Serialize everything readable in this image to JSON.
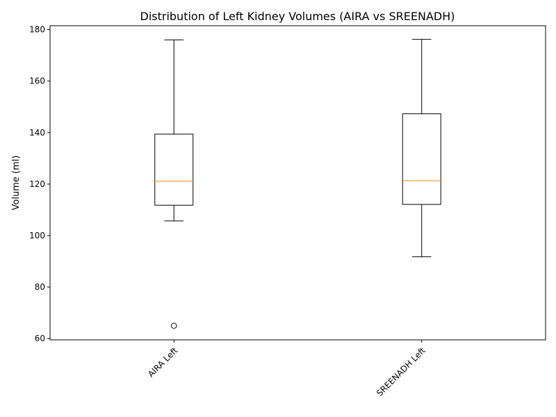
{
  "chart_data": {
    "type": "box",
    "title": "Distribution of Left Kidney Volumes (AIRA vs SREENADH)",
    "xlabel": "",
    "ylabel": "Volume (ml)",
    "ylim": [
      59.5,
      181.5
    ],
    "yticks": [
      60,
      80,
      100,
      120,
      140,
      160,
      180
    ],
    "categories": [
      "AIRA Left",
      "SREENADH Left"
    ],
    "grid": false,
    "boxes": [
      {
        "label": "AIRA Left",
        "whisker_low": 105.7,
        "q1": 111.8,
        "median": 121.1,
        "q3": 139.4,
        "whisker_high": 176.0,
        "outliers": [
          65.0
        ]
      },
      {
        "label": "SREENADH Left",
        "whisker_low": 91.8,
        "q1": 112.1,
        "median": 121.3,
        "q3": 147.3,
        "whisker_high": 176.2,
        "outliers": []
      }
    ],
    "colors": {
      "box": "#000000",
      "median": "#ff7f0e",
      "outlier": "#000000"
    }
  }
}
